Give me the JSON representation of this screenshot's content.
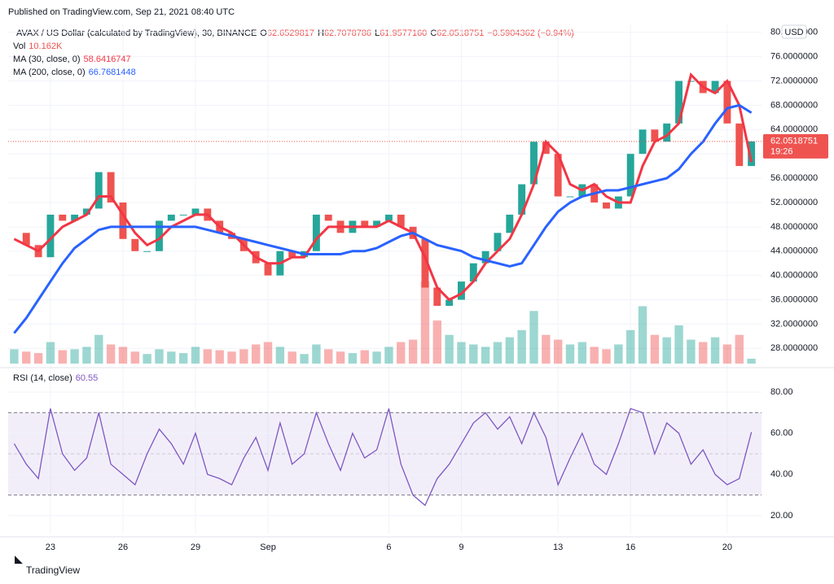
{
  "header": {
    "published": "Published on TradingView.com, Sep 21, 2021 08:40 UTC",
    "symbol": "AVAX / US Dollar (calculated by TradingView), 30, BINANCE",
    "ohlc": [
      [
        "O",
        "62.6529817"
      ],
      [
        "H",
        "62.7078786"
      ],
      [
        "L",
        "61.9577160"
      ],
      [
        "C",
        "62.0518751"
      ]
    ],
    "change": "−0.5904362 (−0.94%)",
    "currency": "USD",
    "countdown": "19:26",
    "logo": "TradingView"
  },
  "chart_data": [
    {
      "type": "candlestick",
      "categories": [
        null,
        null,
        null,
        "23",
        null,
        null,
        null,
        null,
        null,
        "26",
        null,
        null,
        null,
        null,
        null,
        "29",
        null,
        null,
        null,
        null,
        null,
        "Sep",
        null,
        null,
        null,
        null,
        null,
        null,
        null,
        null,
        null,
        "6",
        null,
        null,
        null,
        null,
        null,
        "9",
        null,
        null,
        null,
        null,
        null,
        null,
        null,
        "13",
        null,
        null,
        null,
        null,
        null,
        "16",
        null,
        null,
        null,
        null,
        null,
        null,
        null,
        "20",
        null,
        null
      ],
      "ylim": [
        25.5,
        81.3
      ],
      "yticks": [
        {
          "value": 28,
          "label": "28.0000000"
        },
        {
          "value": 32,
          "label": "32.0000000"
        },
        {
          "value": 36,
          "label": "36.0000000"
        },
        {
          "value": 40,
          "label": "40.0000000"
        },
        {
          "value": 44,
          "label": "44.0000000"
        },
        {
          "value": 48,
          "label": "48.0000000"
        },
        {
          "value": 52,
          "label": "52.0000000"
        },
        {
          "value": 56,
          "label": "56.0000000"
        },
        {
          "value": 60,
          "label": "60.0000000"
        },
        {
          "value": 64,
          "label": "64.0000000"
        },
        {
          "value": 68,
          "label": "68.0000000"
        },
        {
          "value": 72,
          "label": "72.0000000"
        },
        {
          "value": 76,
          "label": "76.0000000"
        },
        {
          "value": 80,
          "label": "80.0000000"
        }
      ],
      "grid": true,
      "up_color": "#26a69a",
      "down_color": "#ef5350",
      "series": [
        {
          "name": "AVAX / US Dollar",
          "color": "#ef5350",
          "role": "price",
          "values": [
            47,
            45,
            43,
            50,
            49,
            50,
            51,
            57,
            52,
            46,
            44,
            44,
            49,
            50,
            50,
            51,
            49,
            47,
            46,
            44,
            42,
            40,
            44,
            43,
            44,
            50,
            49,
            47,
            49,
            48,
            49,
            50,
            48,
            46,
            38,
            35,
            36,
            39,
            42,
            44,
            47,
            50,
            55,
            62,
            60,
            53,
            53,
            55,
            52,
            51,
            53,
            60,
            64,
            62,
            65,
            72,
            72,
            70,
            72,
            65,
            58,
            62.0518751
          ]
        },
        {
          "name": "MA (30, close, 0)",
          "color": "#f23645",
          "role": "line",
          "values": [
            46,
            45,
            44,
            46,
            48,
            49,
            50,
            53,
            53,
            50,
            47,
            45,
            46,
            48,
            49,
            50,
            50,
            48,
            47,
            45,
            43,
            42,
            42,
            43,
            43,
            46,
            48,
            48,
            48,
            48,
            48,
            49,
            48,
            47,
            43,
            38,
            36,
            37,
            39,
            42,
            44,
            46,
            50,
            55,
            62,
            60,
            55,
            54,
            55,
            53,
            52,
            52,
            58,
            62,
            63,
            65,
            73,
            71,
            70,
            72,
            68,
            58.6416747
          ]
        },
        {
          "name": "MA (200, close, 0)",
          "color": "#2962ff",
          "role": "line",
          "values": [
            30.5,
            33,
            36,
            39,
            42,
            44.5,
            46,
            47.5,
            48,
            48,
            48,
            48,
            48,
            48,
            48,
            48,
            47.5,
            47,
            46.5,
            46,
            45.5,
            45,
            44.5,
            44,
            43.5,
            43.5,
            43.5,
            43.5,
            44,
            44,
            44.5,
            45.5,
            46.5,
            47,
            46,
            45,
            44.5,
            44,
            43,
            42.5,
            42,
            41.5,
            42,
            45,
            48,
            50.5,
            52,
            53,
            53.5,
            54,
            54,
            54.5,
            55,
            55.5,
            56,
            57.5,
            60,
            62,
            65,
            67.5,
            68,
            66.7681448
          ]
        }
      ],
      "volume": {
        "name": "Vol",
        "last_label": "10.162K",
        "ylim": [
          0,
          250
        ],
        "values": [
          30,
          25,
          22,
          45,
          28,
          30,
          35,
          60,
          40,
          35,
          25,
          20,
          30,
          25,
          22,
          35,
          30,
          28,
          25,
          30,
          40,
          45,
          35,
          25,
          20,
          40,
          30,
          25,
          22,
          28,
          25,
          35,
          45,
          50,
          172,
          90,
          60,
          45,
          40,
          35,
          45,
          55,
          70,
          110,
          60,
          50,
          40,
          45,
          35,
          30,
          40,
          70,
          120,
          60,
          55,
          80,
          50,
          45,
          55,
          40,
          60,
          10.162
        ]
      }
    },
    {
      "type": "line",
      "ylim": [
        11.3,
        89.9
      ],
      "yticks": [
        {
          "value": 20,
          "label": "20.00"
        },
        {
          "value": 40,
          "label": "40.00"
        },
        {
          "value": 60,
          "label": "60.00"
        },
        {
          "value": 80,
          "label": "80.00"
        }
      ],
      "bands": [
        30,
        70
      ],
      "midline": 50,
      "band_color": "#7e57c2",
      "series": [
        {
          "name": "RSI (14, close)",
          "color": "#7e57c2",
          "values": [
            55,
            45,
            38,
            72,
            50,
            42,
            48,
            70,
            45,
            40,
            35,
            50,
            62,
            55,
            45,
            60,
            40,
            38,
            35,
            48,
            58,
            42,
            65,
            45,
            50,
            70,
            55,
            42,
            60,
            48,
            52,
            72,
            45,
            30,
            25,
            38,
            45,
            55,
            65,
            70,
            62,
            68,
            55,
            70,
            58,
            35,
            48,
            60,
            45,
            40,
            55,
            72,
            70,
            50,
            65,
            60,
            45,
            52,
            40,
            35,
            38,
            60.55
          ]
        }
      ]
    }
  ]
}
